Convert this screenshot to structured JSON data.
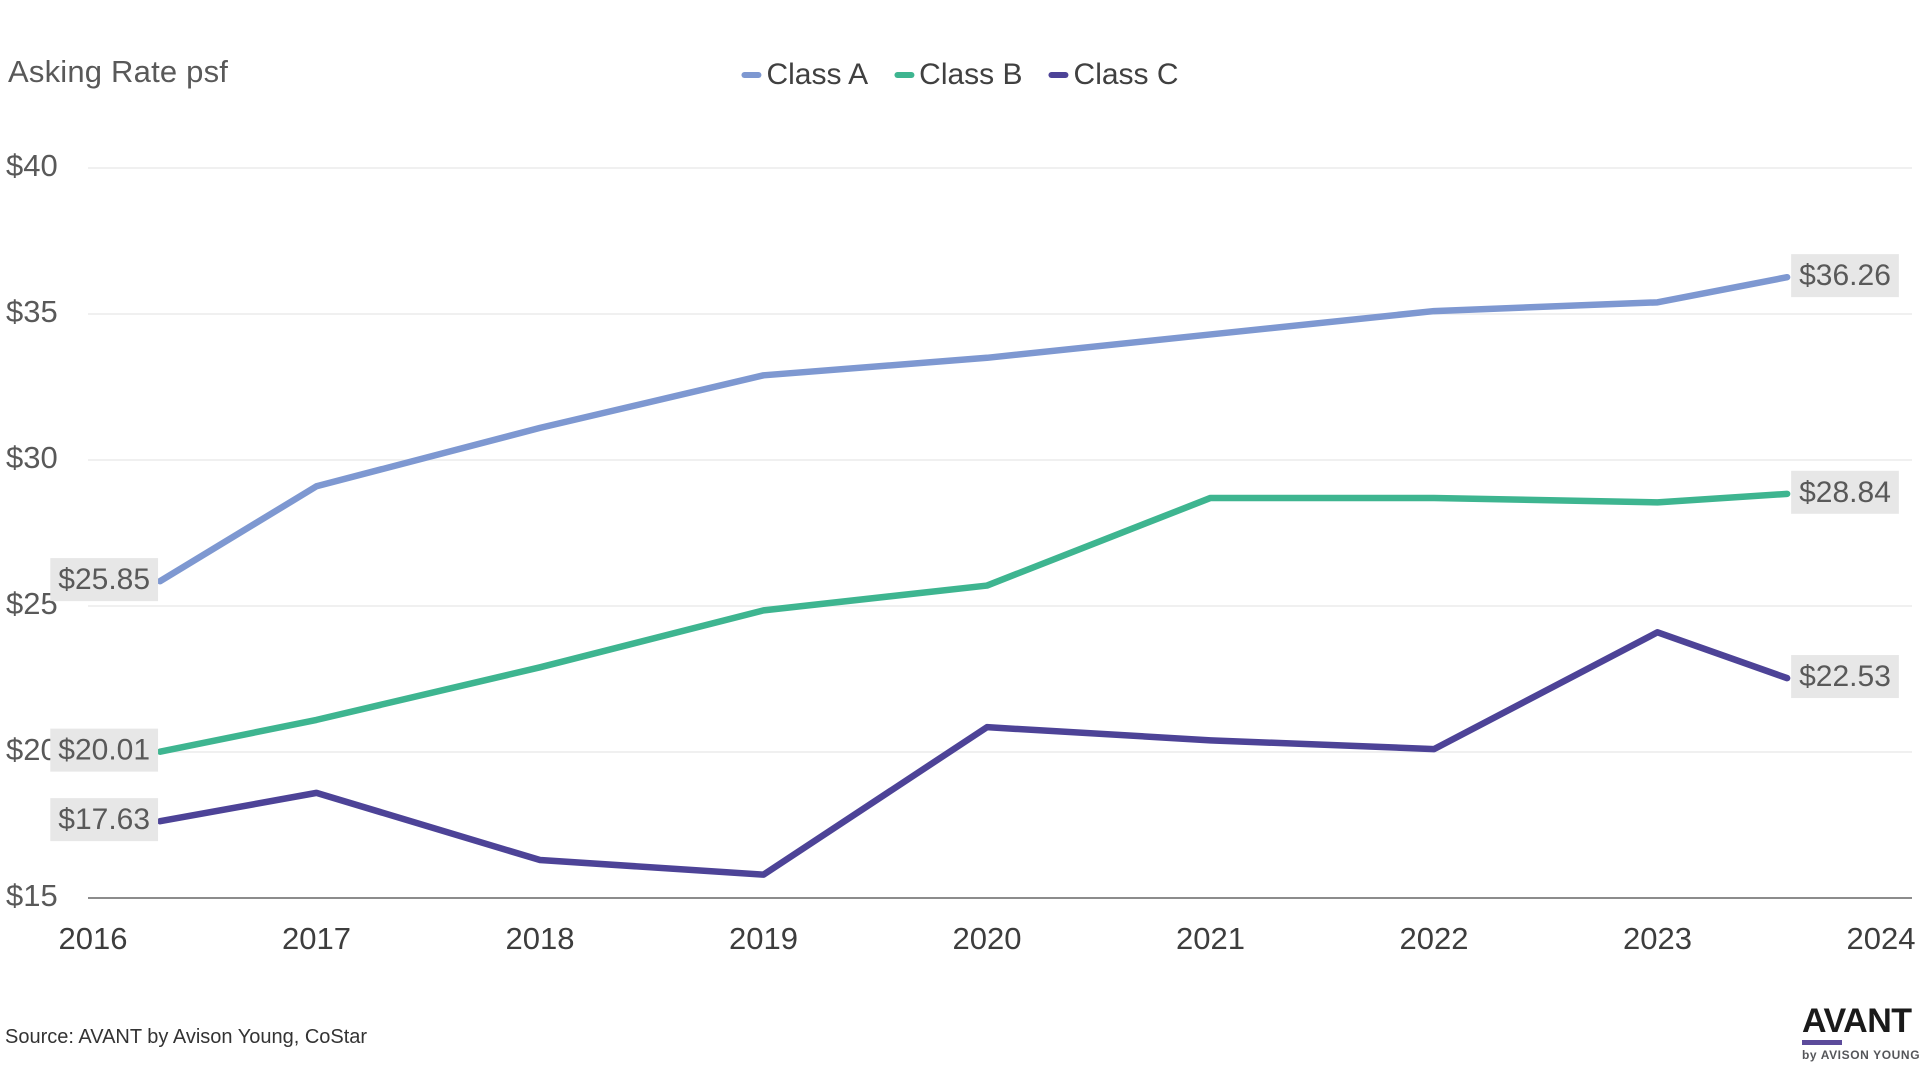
{
  "header": {
    "title": "Asking Rate psf"
  },
  "chart_data": {
    "type": "line",
    "title": "Asking Rate psf",
    "categories": [
      "2016",
      "2017",
      "2018",
      "2019",
      "2020",
      "2021",
      "2022",
      "2023",
      "2024"
    ],
    "x_tick_values": [
      2016,
      2017,
      2018,
      2019,
      2020,
      2021,
      2022,
      2023,
      2024
    ],
    "x_positions": [
      2016.3,
      2017,
      2018,
      2019,
      2020,
      2021,
      2022,
      2023,
      2023.58
    ],
    "y_ticks": [
      15,
      20,
      25,
      30,
      35,
      40
    ],
    "y_tick_labels": [
      "$15",
      "$20",
      "$25",
      "$30",
      "$35",
      "$40"
    ],
    "ylim": [
      15,
      40
    ],
    "grid": "horizontal",
    "legend_position": "top-center",
    "series": [
      {
        "name": "Class A",
        "color": "#7E98D1",
        "values": [
          25.85,
          29.1,
          31.1,
          32.9,
          33.5,
          34.3,
          35.1,
          35.4,
          36.26
        ],
        "start_label": "$25.85",
        "end_label": "$36.26"
      },
      {
        "name": "Class B",
        "color": "#3EB590",
        "values": [
          20.01,
          21.1,
          22.9,
          24.85,
          25.7,
          28.7,
          28.7,
          28.55,
          28.84
        ],
        "start_label": "$20.01",
        "end_label": "$28.84"
      },
      {
        "name": "Class C",
        "color": "#4D4397",
        "values": [
          17.63,
          18.6,
          16.3,
          15.8,
          20.85,
          20.4,
          20.1,
          24.1,
          22.53
        ],
        "start_label": "$17.63",
        "end_label": "$22.53"
      }
    ],
    "colors": {
      "gridline": "#ECECEC",
      "axis_line": "#8C8C8C",
      "x_tick_text": "#3D3D3D",
      "y_tick_text": "#595959",
      "data_label_bg": "#E7E7E7",
      "data_label_text": "#595959"
    }
  },
  "footer": {
    "source": "Source: AVANT by Avison Young, CoStar",
    "logo_text": "AVANT",
    "logo_subtext": "by AVISON YOUNG"
  }
}
